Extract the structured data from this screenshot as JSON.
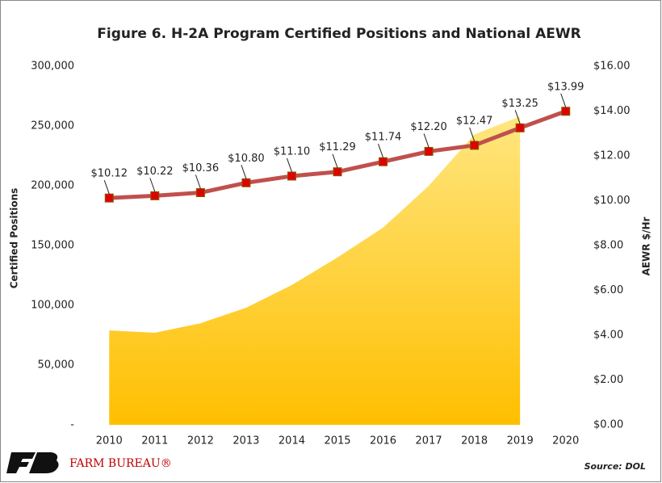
{
  "chart_data": {
    "type": "area",
    "title": "Figure 6. H-2A Program Certified Positions and National AEWR",
    "ylabel": "Certified Positions",
    "y2label": "AEWR $/Hr",
    "source": "Source: DOL",
    "logo": "FARM BUREAU®",
    "categories": [
      "2010",
      "2011",
      "2012",
      "2013",
      "2014",
      "2015",
      "2016",
      "2017",
      "2018",
      "2019",
      "2020"
    ],
    "ylim": [
      0,
      300000
    ],
    "yticks": [
      {
        "value": 0,
        "label": "-"
      },
      {
        "value": 50000,
        "label": "50,000"
      },
      {
        "value": 100000,
        "label": "100,000"
      },
      {
        "value": 150000,
        "label": "150,000"
      },
      {
        "value": 200000,
        "label": "200,000"
      },
      {
        "value": 250000,
        "label": "250,000"
      },
      {
        "value": 300000,
        "label": "300,000"
      }
    ],
    "y2lim": [
      0,
      16
    ],
    "y2ticks": [
      {
        "value": 0,
        "label": "$0.00"
      },
      {
        "value": 2,
        "label": "$2.00"
      },
      {
        "value": 4,
        "label": "$4.00"
      },
      {
        "value": 6,
        "label": "$6.00"
      },
      {
        "value": 8,
        "label": "$8.00"
      },
      {
        "value": 10,
        "label": "$10.00"
      },
      {
        "value": 12,
        "label": "$12.00"
      },
      {
        "value": 14,
        "label": "$14.00"
      },
      {
        "value": 16,
        "label": "$16.00"
      }
    ],
    "series": [
      {
        "type": "area",
        "color": "#ffc000",
        "values": [
          79000,
          77000,
          85000,
          98000,
          117000,
          140000,
          165000,
          200000,
          243000,
          258000,
          null
        ]
      },
      {
        "type": "line",
        "axis": "y2",
        "color": "#c0504d",
        "marker_color": "#e00000",
        "values": [
          10.12,
          10.22,
          10.36,
          10.8,
          11.1,
          11.29,
          11.74,
          12.2,
          12.47,
          13.25,
          13.99
        ],
        "value_labels": [
          "$10.12",
          "$10.22",
          "$10.36",
          "$10.80",
          "$11.10",
          "$11.29",
          "$11.74",
          "$12.20",
          "$12.47",
          "$13.25",
          "$13.99"
        ]
      }
    ]
  }
}
